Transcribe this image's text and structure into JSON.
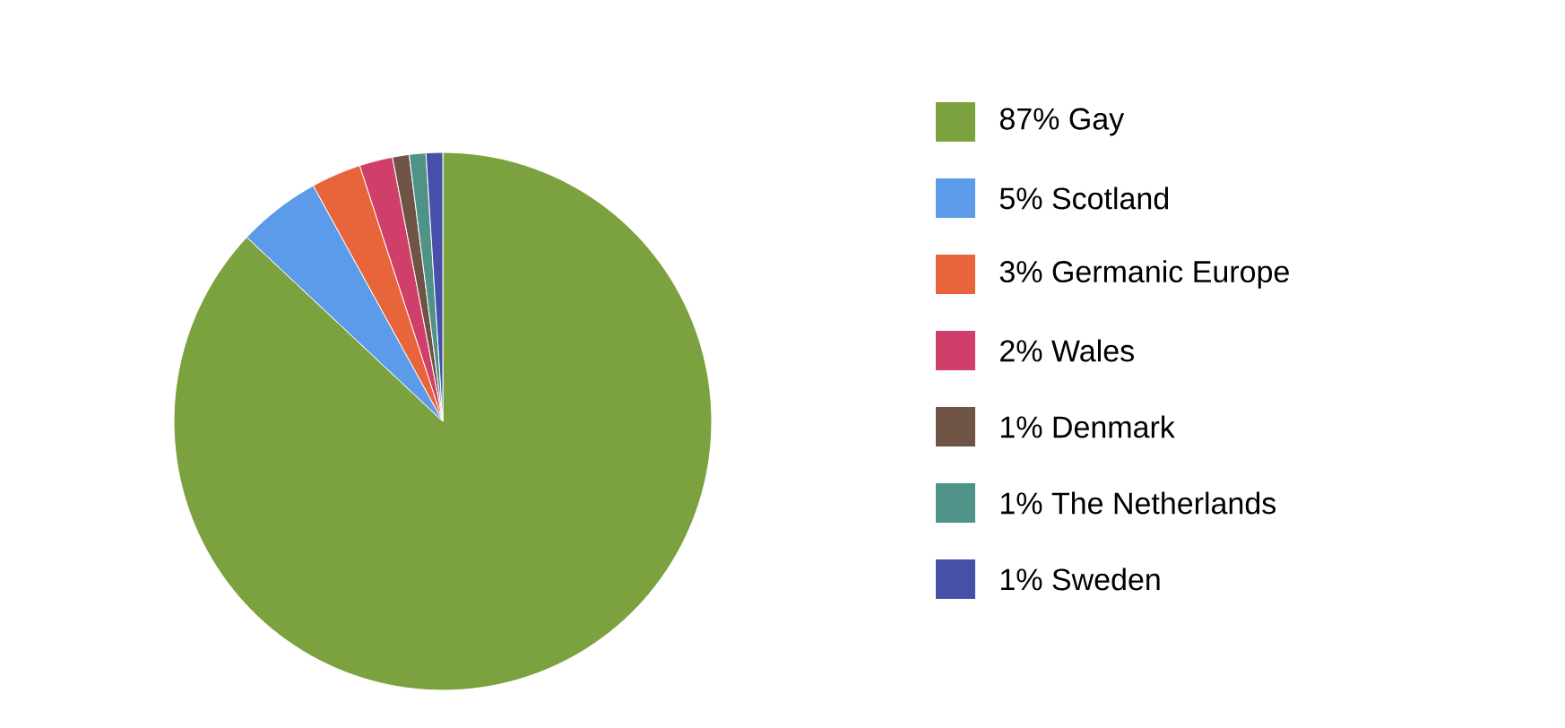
{
  "chart_data": {
    "type": "pie",
    "categories": [
      "87% Gay",
      "5% Scotland",
      "3% Germanic Europe",
      "2% Wales",
      "1% Denmark",
      "1% The Netherlands",
      "1% Sweden"
    ],
    "values": [
      87,
      5,
      3,
      2,
      1,
      1,
      1
    ],
    "colors": [
      "#7ba23f",
      "#5b9bea",
      "#e8643a",
      "#d03f6a",
      "#6f5344",
      "#4f9288",
      "#4650a8"
    ],
    "legend": "right"
  }
}
